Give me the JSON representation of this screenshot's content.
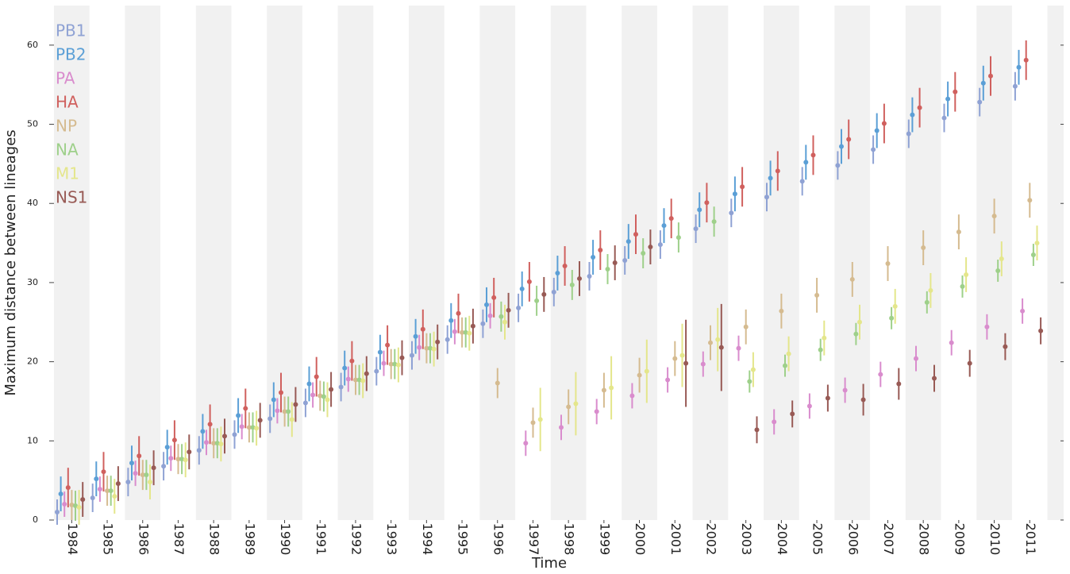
{
  "chart_data": {
    "type": "errorbar",
    "x_label": "Time",
    "y_label": "Maximum distance between lineages",
    "categories": [
      "1984",
      "1985",
      "1986",
      "1987",
      "1988",
      "1989",
      "1990",
      "1991",
      "1992",
      "1993",
      "1994",
      "1995",
      "1996",
      "1997",
      "1998",
      "1999",
      "2000",
      "2001",
      "2002",
      "2003",
      "2004",
      "2005",
      "2006",
      "2007",
      "2008",
      "2009",
      "2010",
      "2011"
    ],
    "ylim": [
      0,
      65
    ],
    "yticks": [
      0,
      10,
      20,
      30,
      40,
      50,
      60
    ],
    "legend": "upper-left",
    "series": [
      {
        "name": "PB1",
        "color": "#8fa2d4",
        "values": [
          1.0,
          2.8,
          4.8,
          6.8,
          8.8,
          10.8,
          12.8,
          14.8,
          16.8,
          18.8,
          20.8,
          22.8,
          24.8,
          26.8,
          28.8,
          30.8,
          32.8,
          34.8,
          36.8,
          38.8,
          40.8,
          42.8,
          44.8,
          46.8,
          48.8,
          50.8,
          52.8,
          54.8
        ],
        "errors": [
          1.6,
          1.8,
          1.8,
          1.8,
          1.8,
          1.8,
          1.8,
          1.8,
          1.8,
          1.8,
          1.8,
          1.8,
          1.8,
          1.8,
          1.8,
          1.8,
          1.8,
          1.8,
          1.8,
          1.8,
          1.8,
          1.8,
          1.8,
          1.8,
          1.8,
          1.8,
          1.8,
          1.8
        ]
      },
      {
        "name": "PB2",
        "color": "#5b9fd6",
        "values": [
          3.3,
          5.2,
          7.2,
          9.2,
          11.2,
          13.2,
          15.2,
          17.2,
          19.2,
          21.2,
          23.2,
          25.2,
          27.2,
          29.2,
          31.2,
          33.2,
          35.2,
          37.2,
          39.2,
          41.2,
          43.2,
          45.2,
          47.2,
          49.2,
          51.2,
          53.2,
          55.2,
          57.2
        ],
        "errors": [
          2.2,
          2.2,
          2.2,
          2.2,
          2.2,
          2.2,
          2.2,
          2.2,
          2.2,
          2.2,
          2.2,
          2.2,
          2.2,
          2.2,
          2.2,
          2.2,
          2.2,
          2.2,
          2.2,
          2.2,
          2.2,
          2.2,
          2.2,
          2.2,
          2.2,
          2.2,
          2.2,
          2.2
        ]
      },
      {
        "name": "PA",
        "color": "#d98ccd",
        "values": [
          2.0,
          3.9,
          5.9,
          7.8,
          9.8,
          11.8,
          13.8,
          15.8,
          17.8,
          19.8,
          21.8,
          23.8,
          25.8,
          9.7,
          11.7,
          13.7,
          15.7,
          17.7,
          19.7,
          21.7,
          12.4,
          14.4,
          16.4,
          18.4,
          20.4,
          22.4,
          24.4,
          26.4
        ],
        "errors": [
          1.6,
          1.6,
          1.6,
          1.6,
          1.6,
          1.6,
          1.6,
          1.6,
          1.6,
          1.6,
          1.6,
          1.6,
          1.6,
          1.6,
          1.6,
          1.6,
          1.6,
          1.6,
          1.6,
          1.6,
          1.6,
          1.6,
          1.6,
          1.6,
          1.6,
          1.6,
          1.6,
          1.6
        ]
      },
      {
        "name": "HA",
        "color": "#d0605e",
        "values": [
          4.1,
          6.1,
          8.1,
          10.1,
          12.1,
          14.1,
          16.1,
          18.1,
          20.1,
          22.1,
          24.1,
          26.1,
          28.1,
          30.1,
          32.1,
          34.1,
          36.1,
          38.1,
          40.1,
          42.1,
          44.1,
          46.1,
          48.1,
          50.1,
          52.1,
          54.1,
          56.1,
          58.1
        ],
        "errors": [
          2.5,
          2.5,
          2.5,
          2.5,
          2.5,
          2.5,
          2.5,
          2.5,
          2.5,
          2.5,
          2.5,
          2.5,
          2.5,
          2.5,
          2.5,
          2.5,
          2.5,
          2.5,
          2.5,
          2.5,
          2.5,
          2.5,
          2.5,
          2.5,
          2.5,
          2.5,
          2.5,
          2.5
        ]
      },
      {
        "name": "NP",
        "color": "#d5bb90",
        "values": [
          1.9,
          3.7,
          5.7,
          7.7,
          9.7,
          11.7,
          13.7,
          15.7,
          17.7,
          19.7,
          21.7,
          23.7,
          17.3,
          12.3,
          14.3,
          16.4,
          18.3,
          20.4,
          22.4,
          24.4,
          26.4,
          28.4,
          30.4,
          32.4,
          34.4,
          36.4,
          38.4,
          40.4
        ],
        "errors": [
          1.9,
          1.9,
          1.9,
          1.9,
          1.9,
          1.9,
          1.9,
          1.9,
          1.9,
          1.9,
          1.9,
          1.9,
          1.9,
          1.9,
          2.2,
          2.2,
          2.2,
          2.2,
          2.2,
          2.2,
          2.2,
          2.2,
          2.2,
          2.2,
          2.2,
          2.2,
          2.2,
          2.2
        ]
      },
      {
        "name": "NA",
        "color": "#9ed08a",
        "values": [
          1.8,
          3.7,
          5.7,
          7.7,
          9.7,
          11.7,
          13.7,
          15.6,
          17.7,
          19.7,
          21.7,
          23.7,
          25.7,
          27.7,
          29.7,
          31.7,
          33.7,
          35.7,
          37.7,
          17.5,
          19.5,
          21.5,
          23.5,
          25.5,
          27.5,
          29.5,
          31.5,
          33.5
        ],
        "errors": [
          1.9,
          1.9,
          1.9,
          1.9,
          1.9,
          1.9,
          1.9,
          1.9,
          1.9,
          1.9,
          1.9,
          1.9,
          1.9,
          1.9,
          1.9,
          1.9,
          1.9,
          1.9,
          1.9,
          1.4,
          1.4,
          1.4,
          1.4,
          1.4,
          1.4,
          1.4,
          1.4,
          1.4
        ]
      },
      {
        "name": "M1",
        "color": "#e4e68b",
        "values": [
          1.6,
          3.0,
          4.8,
          7.6,
          9.6,
          11.6,
          12.7,
          15.2,
          17.6,
          19.6,
          21.6,
          23.6,
          25.0,
          12.7,
          14.7,
          16.7,
          18.8,
          20.8,
          22.8,
          19.0,
          21.0,
          23.0,
          25.0,
          27.0,
          29.0,
          31.0,
          33.0,
          35.0
        ],
        "errors": [
          2.2,
          2.2,
          2.2,
          2.2,
          2.2,
          2.2,
          2.2,
          2.2,
          2.2,
          2.2,
          2.2,
          2.2,
          2.2,
          4.0,
          4.0,
          4.0,
          4.0,
          4.0,
          4.0,
          2.2,
          2.2,
          2.2,
          2.2,
          2.2,
          2.2,
          2.2,
          2.2,
          2.2
        ]
      },
      {
        "name": "NS1",
        "color": "#985a55",
        "values": [
          2.6,
          4.6,
          6.6,
          8.6,
          10.6,
          12.6,
          14.6,
          16.5,
          18.5,
          20.5,
          22.5,
          24.5,
          26.5,
          28.5,
          30.5,
          32.5,
          34.5,
          19.8,
          21.8,
          11.4,
          13.4,
          15.4,
          15.2,
          17.2,
          17.9,
          19.8,
          21.9,
          23.9
        ],
        "errors": [
          2.2,
          2.2,
          2.2,
          2.2,
          2.2,
          2.2,
          2.2,
          2.2,
          2.2,
          2.2,
          2.2,
          2.2,
          2.2,
          2.2,
          2.2,
          2.2,
          2.2,
          5.5,
          5.5,
          1.7,
          1.7,
          1.7,
          2.0,
          2.0,
          1.7,
          1.7,
          1.7,
          1.7
        ]
      }
    ]
  }
}
